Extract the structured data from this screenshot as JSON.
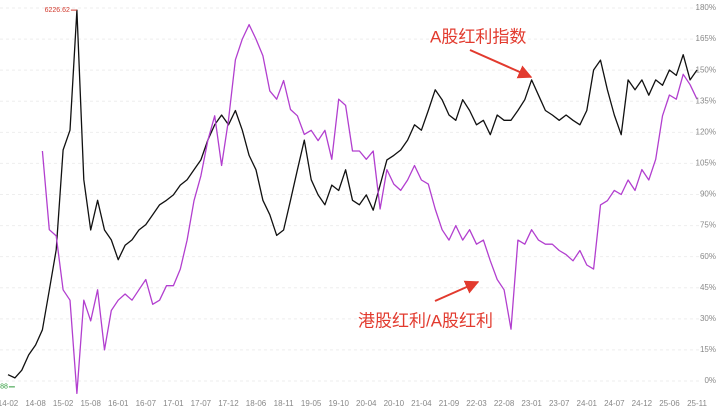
{
  "chart_data": {
    "type": "line",
    "categories": [
      "14-02",
      null,
      null,
      null,
      "14-08",
      null,
      null,
      null,
      "15-02",
      null,
      null,
      null,
      "15-08",
      null,
      null,
      null,
      "16-01",
      null,
      null,
      null,
      "16-07",
      null,
      null,
      null,
      "17-01",
      null,
      null,
      null,
      "17-07",
      null,
      null,
      null,
      "17-12",
      null,
      null,
      null,
      "18-06",
      null,
      null,
      null,
      "18-11",
      null,
      null,
      null,
      "19-05",
      null,
      null,
      null,
      "19-10",
      null,
      null,
      null,
      "20-04",
      null,
      null,
      null,
      "20-10",
      null,
      null,
      null,
      "21-04",
      null,
      null,
      null,
      "21-09",
      null,
      null,
      null,
      "22-03",
      null,
      null,
      null,
      "22-08",
      null,
      null,
      null,
      "23-01",
      null,
      null,
      null,
      "23-07",
      null,
      null,
      null,
      "24-01",
      null,
      null,
      null,
      "24-07",
      null,
      null,
      null,
      "24-12",
      null,
      null,
      null,
      "25-06",
      null,
      null,
      null,
      "25-11"
    ],
    "series": [
      {
        "name": "A股红利指数",
        "color": "#111111",
        "axis": "y2",
        "values": [
          2170,
          2134.88,
          2220,
          2390,
          2500,
          2670,
          3110,
          3560,
          4670,
          4890,
          6226.62,
          4340,
          3780,
          4110,
          3780,
          3670,
          3450,
          3610,
          3670,
          3780,
          3840,
          3950,
          4060,
          4110,
          4170,
          4280,
          4340,
          4450,
          4560,
          4780,
          4950,
          5060,
          4950,
          5110,
          4890,
          4610,
          4450,
          4110,
          3950,
          3720,
          3780,
          4110,
          4450,
          4780,
          4340,
          4170,
          4060,
          4280,
          4220,
          4450,
          4110,
          4060,
          4170,
          4000,
          4280,
          4560,
          4610,
          4670,
          4780,
          4950,
          4890,
          5110,
          5340,
          5230,
          5060,
          5000,
          5230,
          5110,
          4950,
          5000,
          4840,
          5060,
          5000,
          5000,
          5110,
          5230,
          5450,
          5280,
          5110,
          5060,
          5000,
          5060,
          5000,
          4950,
          5110,
          5560,
          5670,
          5340,
          5060,
          4840,
          5450,
          5340,
          5450,
          5280,
          5450,
          5390,
          5560,
          5500,
          5730,
          5450,
          5560
        ]
      },
      {
        "name": "港股红利/A股红利",
        "color": "#b23fcf",
        "values": [
          null,
          null,
          null,
          null,
          null,
          111,
          73,
          70,
          44,
          39,
          -6,
          39,
          29,
          44,
          15,
          34,
          39,
          42,
          39,
          44,
          49,
          37,
          39,
          46,
          46,
          54,
          68,
          87,
          99,
          116,
          128,
          104,
          126,
          155,
          165,
          172,
          165,
          157,
          140,
          136,
          145,
          131,
          128,
          119,
          121,
          116,
          121,
          107,
          136,
          133,
          111,
          111,
          107,
          111,
          83,
          102,
          95,
          92,
          97,
          104,
          97,
          95,
          83,
          73,
          68,
          75,
          68,
          73,
          66,
          68,
          58,
          49,
          44,
          25,
          68,
          66,
          73,
          68,
          66,
          66,
          63,
          61,
          58,
          63,
          56,
          54,
          85,
          87,
          92,
          90,
          97,
          92,
          102,
          97,
          107,
          128,
          138,
          136,
          148,
          143,
          136
        ]
      }
    ],
    "extreme_labels": [
      6226.62,
      2134.88
    ],
    "ylim": [
      0,
      180
    ],
    "yticks": [
      {
        "value": 0,
        "label": "0%"
      },
      {
        "value": 15,
        "label": "15%"
      },
      {
        "value": 30,
        "label": "30%"
      },
      {
        "value": 45,
        "label": "45%"
      },
      {
        "value": 60,
        "label": "60%"
      },
      {
        "value": 75,
        "label": "75%"
      },
      {
        "value": 90,
        "label": "90%"
      },
      {
        "value": 105,
        "label": "105%"
      },
      {
        "value": 120,
        "label": "120%"
      },
      {
        "value": 135,
        "label": "135%"
      },
      {
        "value": 150,
        "label": "150%"
      },
      {
        "value": 165,
        "label": "165%"
      },
      {
        "value": 180,
        "label": "180%"
      }
    ],
    "y2lim": [
      2100,
      6250
    ],
    "grid": true
  }
}
